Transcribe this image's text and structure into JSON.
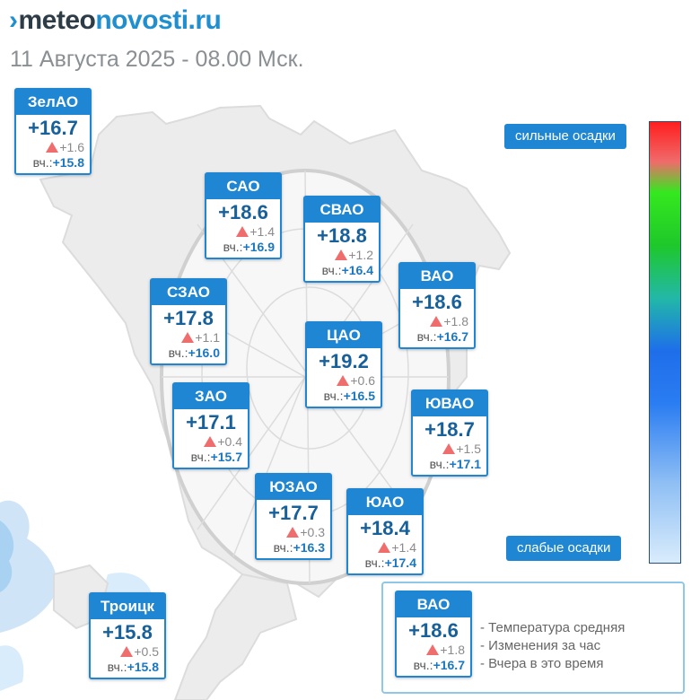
{
  "logo": {
    "prefix": "meteo",
    "suffix": "novosti.ru"
  },
  "subtitle": "11 Августа 2025 - 08.00 Мск.",
  "yesterday_prefix": "вч.:",
  "districts": [
    {
      "id": "zelao",
      "name": "ЗелАО",
      "temp": "+16.7",
      "delta": "+1.6",
      "yesterday": "+15.8"
    },
    {
      "id": "sao",
      "name": "САО",
      "temp": "+18.6",
      "delta": "+1.4",
      "yesterday": "+16.9"
    },
    {
      "id": "svao",
      "name": "СВАО",
      "temp": "+18.8",
      "delta": "+1.2",
      "yesterday": "+16.4"
    },
    {
      "id": "vao",
      "name": "ВАО",
      "temp": "+18.6",
      "delta": "+1.8",
      "yesterday": "+16.7"
    },
    {
      "id": "szao",
      "name": "СЗАО",
      "temp": "+17.8",
      "delta": "+1.1",
      "yesterday": "+16.0"
    },
    {
      "id": "cao",
      "name": "ЦАО",
      "temp": "+19.2",
      "delta": "+0.6",
      "yesterday": "+16.5"
    },
    {
      "id": "zao",
      "name": "ЗАО",
      "temp": "+17.1",
      "delta": "+0.4",
      "yesterday": "+15.7"
    },
    {
      "id": "yuvao",
      "name": "ЮВАО",
      "temp": "+18.7",
      "delta": "+1.5",
      "yesterday": "+17.1"
    },
    {
      "id": "yuzao",
      "name": "ЮЗАО",
      "temp": "+17.7",
      "delta": "+0.3",
      "yesterday": "+16.3"
    },
    {
      "id": "yuao",
      "name": "ЮАО",
      "temp": "+18.4",
      "delta": "+1.4",
      "yesterday": "+17.4"
    },
    {
      "id": "troitsk",
      "name": "Троицк",
      "temp": "+15.8",
      "delta": "+0.5",
      "yesterday": "+15.8"
    }
  ],
  "precip_scale": {
    "top_label": "сильные осадки",
    "bottom_label": "слабые осадки",
    "colors": [
      "#ff1e1e",
      "#35e81f",
      "#1e6eea",
      "#d9ecfc"
    ]
  },
  "legend": {
    "example": {
      "name": "ВАО",
      "temp": "+18.6",
      "delta": "+1.8",
      "yesterday": "+16.7"
    },
    "lines": [
      "- Температура средняя",
      "- Изменения за час",
      "- Вчера в это время"
    ]
  },
  "colors": {
    "brand_blue": "#1f86d4",
    "text_dark": "#2d3c47",
    "delta_up": "#f06d6d"
  }
}
